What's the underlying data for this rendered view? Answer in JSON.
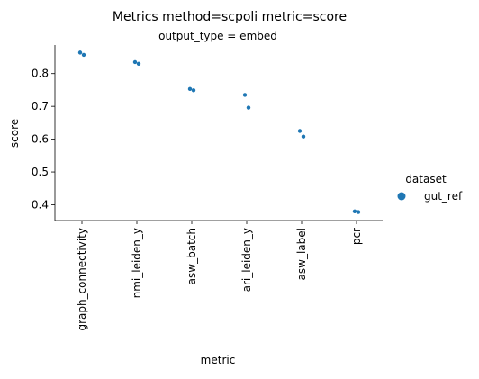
{
  "chart_data": {
    "type": "scatter",
    "title": "Metrics method=scpoli metric=score",
    "subtitle": "output_type = embed",
    "xlabel": "metric",
    "ylabel": "score",
    "categories": [
      "graph_connectivity",
      "nmi_leiden_y",
      "asw_batch",
      "ari_leiden_y",
      "asw_label",
      "pcr"
    ],
    "yticks": [
      0.4,
      0.5,
      0.6,
      0.7,
      0.8
    ],
    "ylim": [
      0.352,
      0.887
    ],
    "grid": false,
    "legend": {
      "title": "dataset",
      "placement": "right",
      "entries": [
        {
          "label": "gut_ref",
          "color": "#1f77b4"
        }
      ]
    },
    "series": [
      {
        "name": "gut_ref",
        "color": "#1f77b4",
        "points": [
          {
            "x": "graph_connectivity",
            "y": 0.864
          },
          {
            "x": "graph_connectivity",
            "y": 0.857
          },
          {
            "x": "nmi_leiden_y",
            "y": 0.835
          },
          {
            "x": "nmi_leiden_y",
            "y": 0.83
          },
          {
            "x": "asw_batch",
            "y": 0.753
          },
          {
            "x": "asw_batch",
            "y": 0.749
          },
          {
            "x": "ari_leiden_y",
            "y": 0.735
          },
          {
            "x": "ari_leiden_y",
            "y": 0.696
          },
          {
            "x": "asw_label",
            "y": 0.625
          },
          {
            "x": "asw_label",
            "y": 0.608
          },
          {
            "x": "pcr",
            "y": 0.38
          },
          {
            "x": "pcr",
            "y": 0.378
          }
        ]
      }
    ]
  }
}
